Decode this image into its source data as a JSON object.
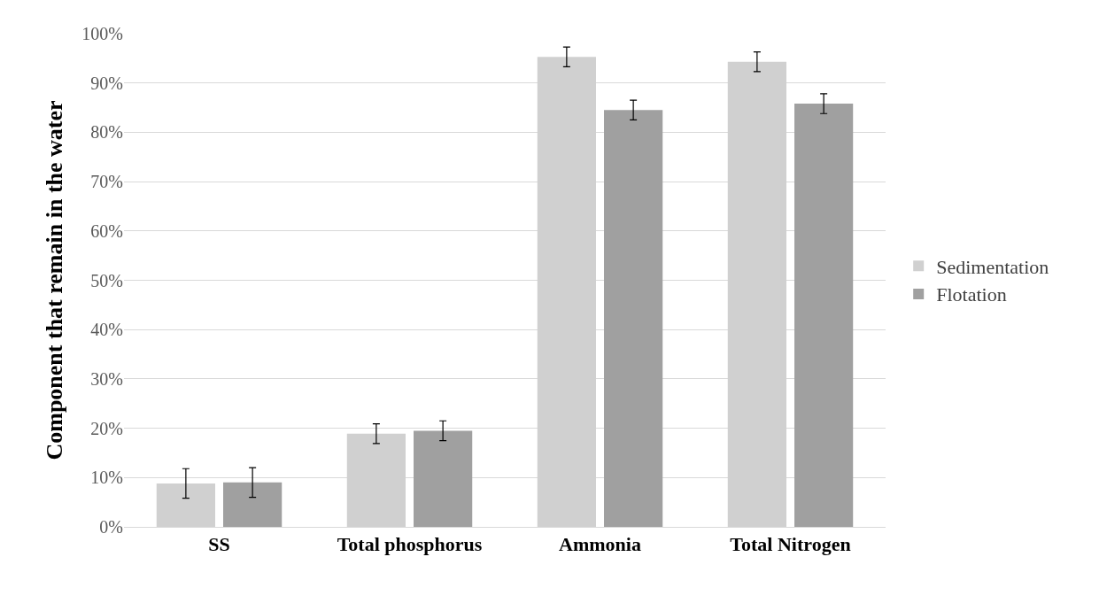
{
  "chart_data": {
    "type": "bar",
    "ylabel": "Component that remain in the water",
    "categories": [
      "SS",
      "Total phosphorus",
      "Ammonia",
      "Total Nitrogen"
    ],
    "series": [
      {
        "name": "Sedimentation",
        "color": "#d0d0d0",
        "values": [
          8.8,
          18.9,
          95.3,
          94.3
        ],
        "errors": [
          3,
          2,
          2,
          2
        ]
      },
      {
        "name": "Flotation",
        "color": "#a0a0a0",
        "values": [
          9,
          19.5,
          84.5,
          85.8
        ],
        "errors": [
          3,
          2,
          2,
          2
        ]
      }
    ],
    "ylim": [
      0,
      100
    ],
    "yticks": [
      {
        "value": 0,
        "label": "0%"
      },
      {
        "value": 10,
        "label": "10%"
      },
      {
        "value": 20,
        "label": "20%"
      },
      {
        "value": 30,
        "label": "30%"
      },
      {
        "value": 40,
        "label": "40%"
      },
      {
        "value": 50,
        "label": "50%"
      },
      {
        "value": 60,
        "label": "60%"
      },
      {
        "value": 70,
        "label": "70%"
      },
      {
        "value": 80,
        "label": "80%"
      },
      {
        "value": 90,
        "label": "90%"
      },
      {
        "value": 100,
        "label": "100%"
      }
    ],
    "grid": "y",
    "legend": "right"
  }
}
